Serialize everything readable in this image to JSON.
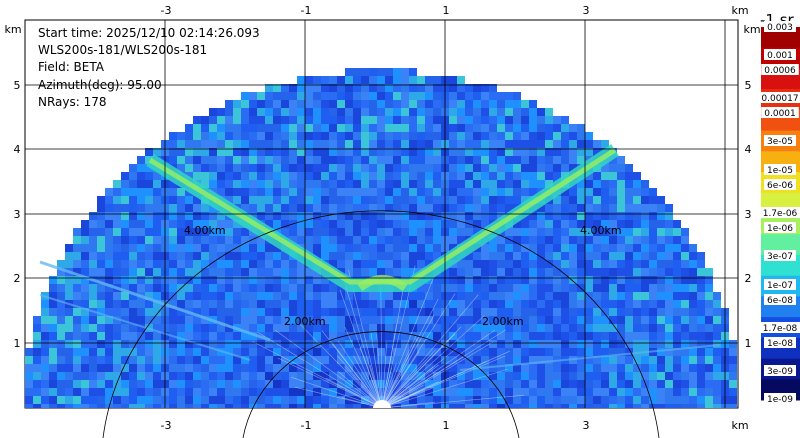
{
  "info": {
    "start_time": "Start time: 2025/12/10 02:14:26.093",
    "instrument": "WLS200s-181/WLS200s-181",
    "field": "Field: BETA",
    "azimuth": "Azimuth(deg): 95.00",
    "nrays": "NRays: 178"
  },
  "axes": {
    "x_ticks": [
      "-3",
      "-1",
      "1",
      "3"
    ],
    "y_ticks": [
      "1",
      "2",
      "3",
      "4",
      "5"
    ],
    "unit": "km"
  },
  "range_rings": {
    "labels": [
      "2.00km",
      "4.00km"
    ]
  },
  "colorbar": {
    "title": "-1 sr",
    "labels": [
      "0.003",
      "0.001",
      "0.0006",
      "0.00017",
      "0.0001",
      "3e-05",
      "1e-05",
      "6e-06",
      "1.7e-06",
      "1e-06",
      "3e-07",
      "1e-07",
      "6e-08",
      "1.7e-08",
      "1e-08",
      "3e-09",
      "1e-09"
    ]
  },
  "colors": {
    "background_scatter": "#1e5ef0",
    "aerosol_layer": "#33d6c0",
    "strong_layer": "#9af060"
  }
}
